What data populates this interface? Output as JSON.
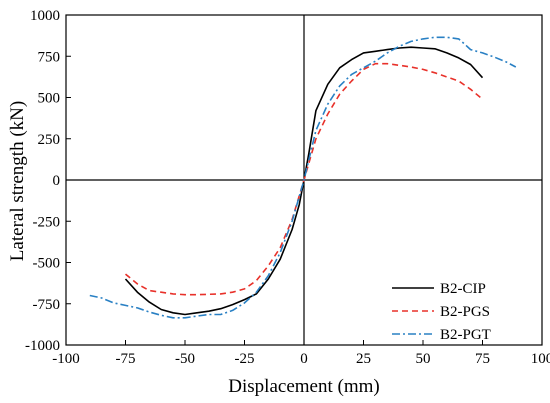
{
  "chart_data": {
    "type": "line",
    "title": "",
    "xlabel": "Displacement (mm)",
    "ylabel": "Lateral strength (kN)",
    "xlim": [
      -100,
      100
    ],
    "ylim": [
      -1000,
      1000
    ],
    "xticks": [
      -100,
      -75,
      -50,
      -25,
      0,
      25,
      50,
      75,
      100
    ],
    "yticks": [
      -1000,
      -750,
      -500,
      -250,
      0,
      250,
      500,
      750,
      1000
    ],
    "zero_lines": true,
    "grid": false,
    "legend_position": "right, below center",
    "series": [
      {
        "name": "B2-CIP",
        "color": "#000000",
        "dash": "solid",
        "x": [
          -75,
          -70,
          -65,
          -60,
          -55,
          -50,
          -45,
          -40,
          -35,
          -30,
          -25,
          -20,
          -15,
          -10,
          -5,
          -2,
          0,
          2,
          5,
          10,
          15,
          20,
          25,
          30,
          35,
          40,
          45,
          50,
          55,
          60,
          65,
          70,
          75
        ],
        "y": [
          -600,
          -680,
          -740,
          -785,
          -805,
          -815,
          -805,
          -795,
          -780,
          -755,
          -725,
          -690,
          -600,
          -480,
          -300,
          -150,
          0,
          160,
          420,
          580,
          680,
          730,
          770,
          780,
          790,
          800,
          805,
          800,
          795,
          770,
          740,
          700,
          620
        ]
      },
      {
        "name": "B2-PGS",
        "color": "#e8312a",
        "dash": "dashed",
        "x": [
          -75,
          -70,
          -65,
          -60,
          -55,
          -50,
          -45,
          -40,
          -35,
          -30,
          -25,
          -20,
          -15,
          -10,
          -5,
          0,
          5,
          10,
          15,
          20,
          25,
          30,
          35,
          40,
          45,
          50,
          55,
          60,
          65,
          70,
          75
        ],
        "y": [
          -570,
          -630,
          -670,
          -680,
          -690,
          -695,
          -695,
          -693,
          -690,
          -680,
          -660,
          -610,
          -520,
          -410,
          -240,
          0,
          250,
          400,
          520,
          600,
          670,
          705,
          705,
          695,
          685,
          670,
          650,
          625,
          600,
          550,
          490
        ]
      },
      {
        "name": "B2-PGT",
        "color": "#2980c4",
        "dash": "dashdot",
        "x": [
          -90,
          -85,
          -80,
          -75,
          -70,
          -65,
          -60,
          -55,
          -50,
          -45,
          -40,
          -35,
          -30,
          -25,
          -20,
          -15,
          -10,
          -5,
          0,
          5,
          10,
          15,
          20,
          25,
          30,
          35,
          40,
          45,
          50,
          55,
          60,
          65,
          67,
          70,
          75,
          80,
          85,
          89
        ],
        "y": [
          -700,
          -715,
          -745,
          -760,
          -775,
          -800,
          -820,
          -835,
          -835,
          -825,
          -815,
          -815,
          -790,
          -745,
          -680,
          -580,
          -440,
          -250,
          0,
          300,
          460,
          570,
          640,
          680,
          720,
          770,
          810,
          840,
          855,
          865,
          865,
          855,
          830,
          790,
          770,
          745,
          715,
          685
        ]
      }
    ]
  }
}
